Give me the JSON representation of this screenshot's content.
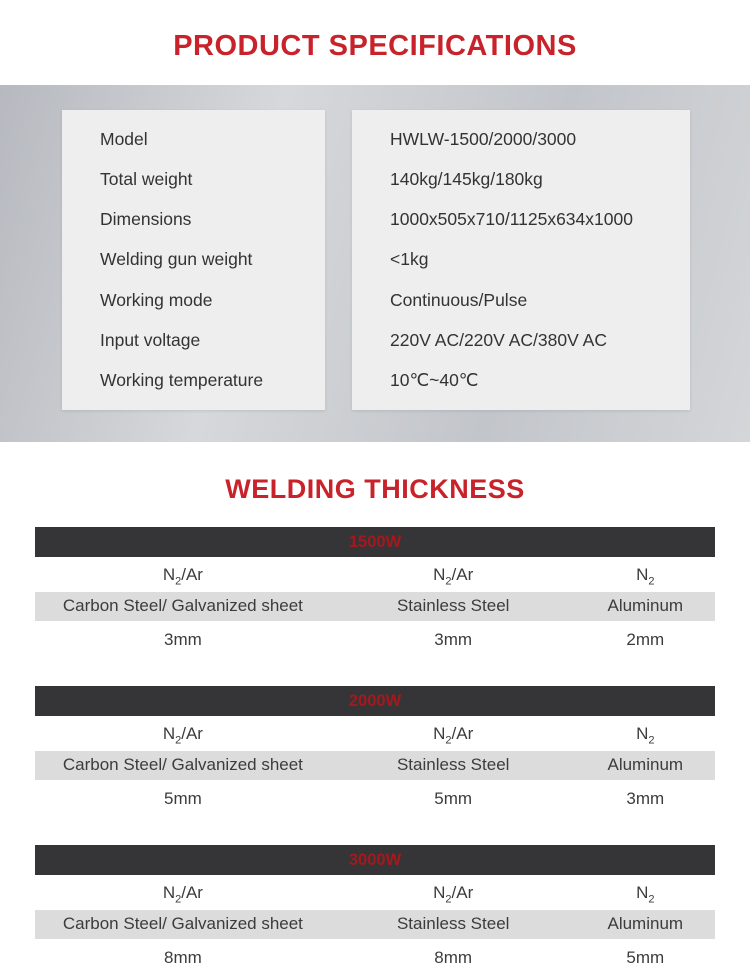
{
  "colors": {
    "accent_red": "#c8232a",
    "power_label_red": "#a3191e",
    "power_bar_dark": "#353537",
    "band_gray": "#c9ccd1",
    "spec_box_gray": "#efeeee",
    "material_row_gray": "#dcdcdc"
  },
  "header": {
    "title": "PRODUCT SPECIFICATIONS"
  },
  "specs": {
    "rows": [
      {
        "label": "Model",
        "value": "HWLW-1500/2000/3000"
      },
      {
        "label": "Total weight",
        "value": "140kg/145kg/180kg"
      },
      {
        "label": "Dimensions",
        "value": "1000x505x710/1125x634x1000"
      },
      {
        "label": "Welding gun weight",
        "value": "<1kg"
      },
      {
        "label": "Working mode",
        "value": "Continuous/Pulse"
      },
      {
        "label": "Input voltage",
        "value": "220V AC/220V AC/380V AC"
      },
      {
        "label": "Working temperature",
        "value": "10℃~40℃"
      }
    ]
  },
  "welding": {
    "title": "WELDING THICKNESS",
    "tables": [
      {
        "power": "1500W",
        "gases": [
          {
            "el": "N",
            "sub": "2",
            "suffix": "/Ar"
          },
          {
            "el": "N",
            "sub": "2",
            "suffix": "/Ar"
          },
          {
            "el": "N",
            "sub": "2",
            "suffix": ""
          }
        ],
        "materials": [
          "Carbon Steel/ Galvanized sheet",
          "Stainless Steel",
          "Aluminum"
        ],
        "thicknesses": [
          "3mm",
          "3mm",
          "2mm"
        ]
      },
      {
        "power": "2000W",
        "gases": [
          {
            "el": "N",
            "sub": "2",
            "suffix": "/Ar"
          },
          {
            "el": "N",
            "sub": "2",
            "suffix": "/Ar"
          },
          {
            "el": "N",
            "sub": "2",
            "suffix": ""
          }
        ],
        "materials": [
          "Carbon Steel/ Galvanized sheet",
          "Stainless Steel",
          "Aluminum"
        ],
        "thicknesses": [
          "5mm",
          "5mm",
          "3mm"
        ]
      },
      {
        "power": "3000W",
        "gases": [
          {
            "el": "N",
            "sub": "2",
            "suffix": "/Ar"
          },
          {
            "el": "N",
            "sub": "2",
            "suffix": "/Ar"
          },
          {
            "el": "N",
            "sub": "2",
            "suffix": ""
          }
        ],
        "materials": [
          "Carbon Steel/ Galvanized sheet",
          "Stainless Steel",
          "Aluminum"
        ],
        "thicknesses": [
          "8mm",
          "8mm",
          "5mm"
        ]
      }
    ]
  }
}
